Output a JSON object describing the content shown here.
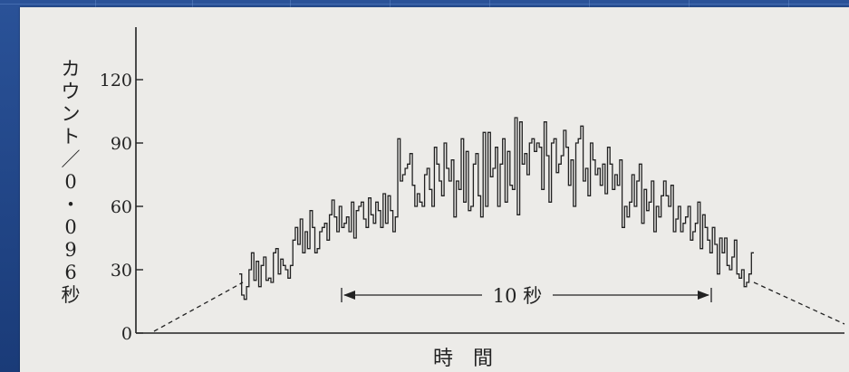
{
  "chart_data": {
    "type": "line",
    "ylabel_chars": [
      "カ",
      "ウ",
      "ン",
      "ト",
      "／",
      "0",
      "・",
      "0",
      "9",
      "6",
      "秒"
    ],
    "ylabel": "カウント／0・096秒",
    "xlabel": "時間",
    "yticks": [
      0,
      30,
      60,
      90,
      120
    ],
    "ylim": [
      0,
      120
    ],
    "annotation": "10 秒",
    "series": [
      {
        "values": [
          28,
          18,
          16,
          22,
          30,
          38,
          25,
          34,
          22,
          32,
          36,
          25,
          26,
          24,
          38,
          40,
          28,
          35,
          32,
          30,
          26,
          32,
          44,
          50,
          42,
          54,
          38,
          48,
          40,
          58,
          50,
          38,
          40,
          48,
          50,
          52,
          44,
          56,
          63,
          55,
          48,
          60,
          50,
          52,
          55,
          48,
          62,
          45,
          58,
          60,
          62,
          54,
          50,
          64,
          56,
          52,
          62,
          58,
          50,
          66,
          52,
          65,
          58,
          48,
          55,
          92,
          72,
          75,
          78,
          80,
          85,
          70,
          60,
          66,
          62,
          60,
          75,
          78,
          68,
          60,
          88,
          80,
          72,
          65,
          90,
          78,
          72,
          82,
          55,
          72,
          68,
          92,
          62,
          86,
          58,
          60,
          80,
          85,
          65,
          55,
          95,
          60,
          95,
          74,
          78,
          88,
          60,
          80,
          92,
          62,
          86,
          70,
          68,
          102,
          56,
          100,
          80,
          85,
          75,
          90,
          92,
          86,
          90,
          88,
          68,
          100,
          84,
          62,
          90,
          92,
          76,
          80,
          84,
          96,
          88,
          70,
          82,
          60,
          90,
          92,
          98,
          72,
          78,
          65,
          90,
          82,
          75,
          78,
          70,
          80,
          66,
          88,
          80,
          68,
          75,
          70,
          82,
          50,
          60,
          55,
          62,
          75,
          60,
          72,
          80,
          52,
          68,
          58,
          62,
          72,
          48,
          60,
          55,
          65,
          72,
          65,
          60,
          70,
          48,
          54,
          60,
          48,
          52,
          55,
          60,
          44,
          48,
          52,
          62,
          40,
          56,
          50,
          44,
          38,
          50,
          42,
          28,
          45,
          38,
          45,
          32,
          30,
          36,
          44,
          28,
          26,
          30,
          22,
          24,
          28,
          38
        ]
      }
    ]
  }
}
